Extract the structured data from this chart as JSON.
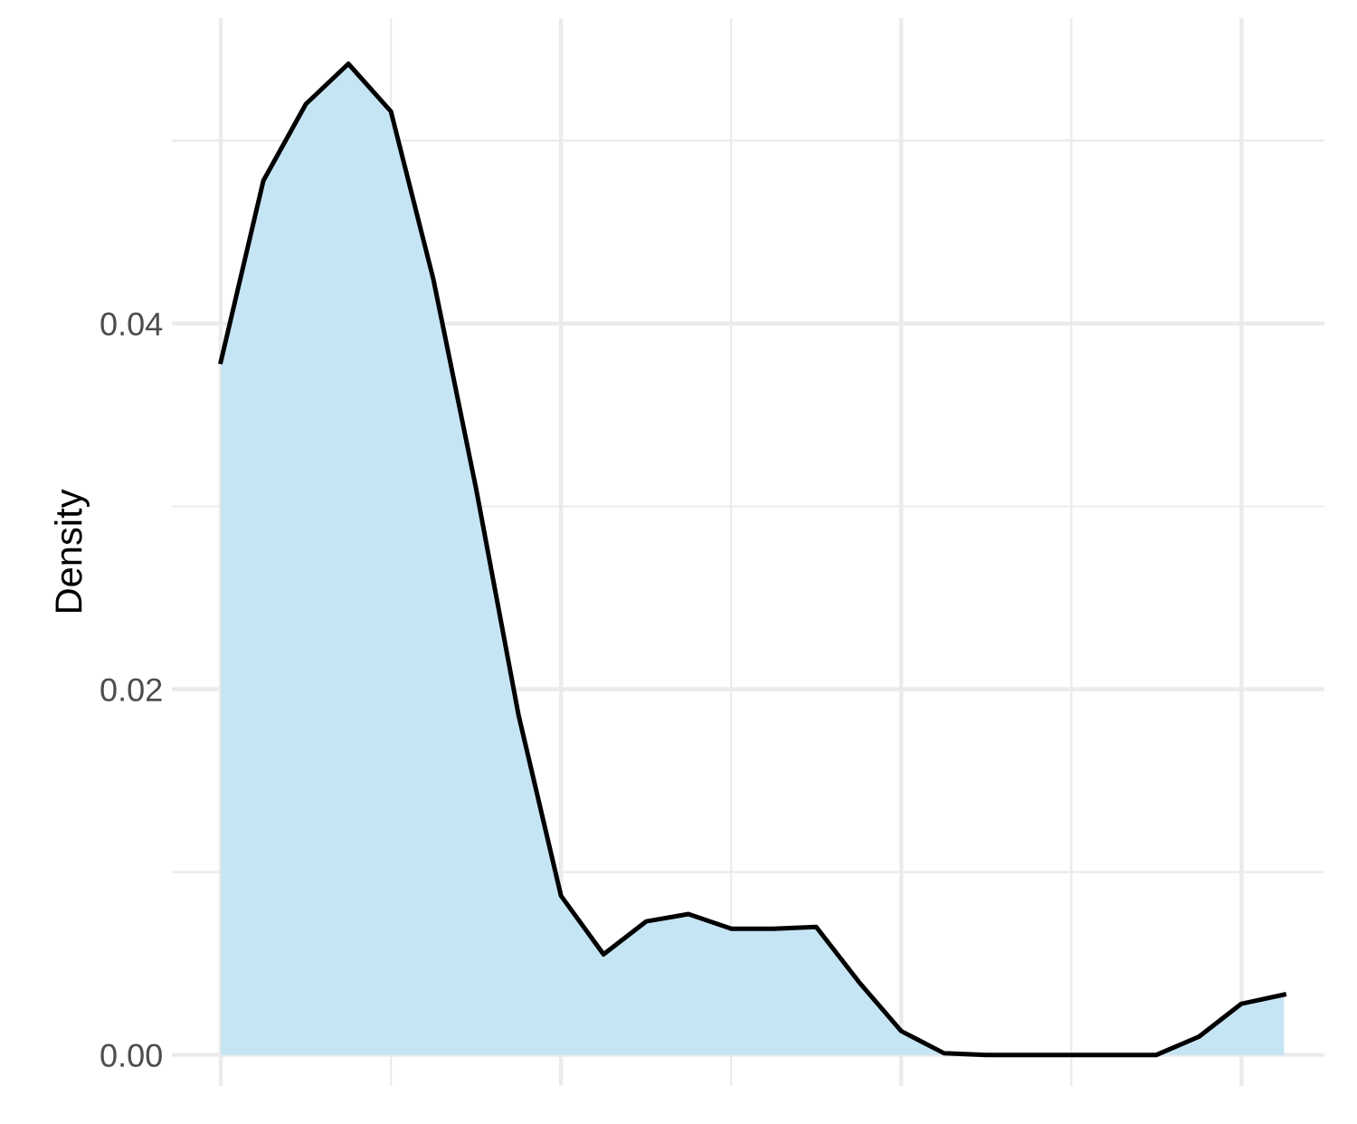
{
  "chart_data": {
    "type": "area",
    "ylabel": "Density",
    "tick_labels": "y",
    "grid": true,
    "categories": [
      null,
      null,
      null,
      null,
      null,
      null,
      null,
      null,
      null,
      null,
      null,
      null,
      null,
      null,
      null,
      null,
      null,
      null,
      null,
      null,
      null,
      null,
      null,
      null,
      null,
      null
    ],
    "series": [
      {
        "color": "#c6e5f4",
        "values": [
          0.0379,
          0.0478,
          0.052,
          0.0542,
          0.0516,
          0.0424,
          0.031,
          0.0186,
          0.0087,
          0.0055,
          0.0073,
          0.0077,
          0.0069,
          0.0069,
          0.007,
          0.004,
          0.0013,
          0.0001,
          0,
          0,
          0,
          0,
          0,
          0.001,
          0.0028,
          0.0033
        ]
      }
    ],
    "ylim": [
      -0.0017,
      0.0567
    ],
    "yticks": [
      {
        "value": 0,
        "label": "0.00"
      },
      {
        "value": 0.01,
        "label": null
      },
      {
        "value": 0.02,
        "label": "0.02"
      },
      {
        "value": 0.03,
        "label": null
      },
      {
        "value": 0.04,
        "label": "0.04"
      },
      {
        "value": 0.05,
        "label": null
      }
    ]
  }
}
